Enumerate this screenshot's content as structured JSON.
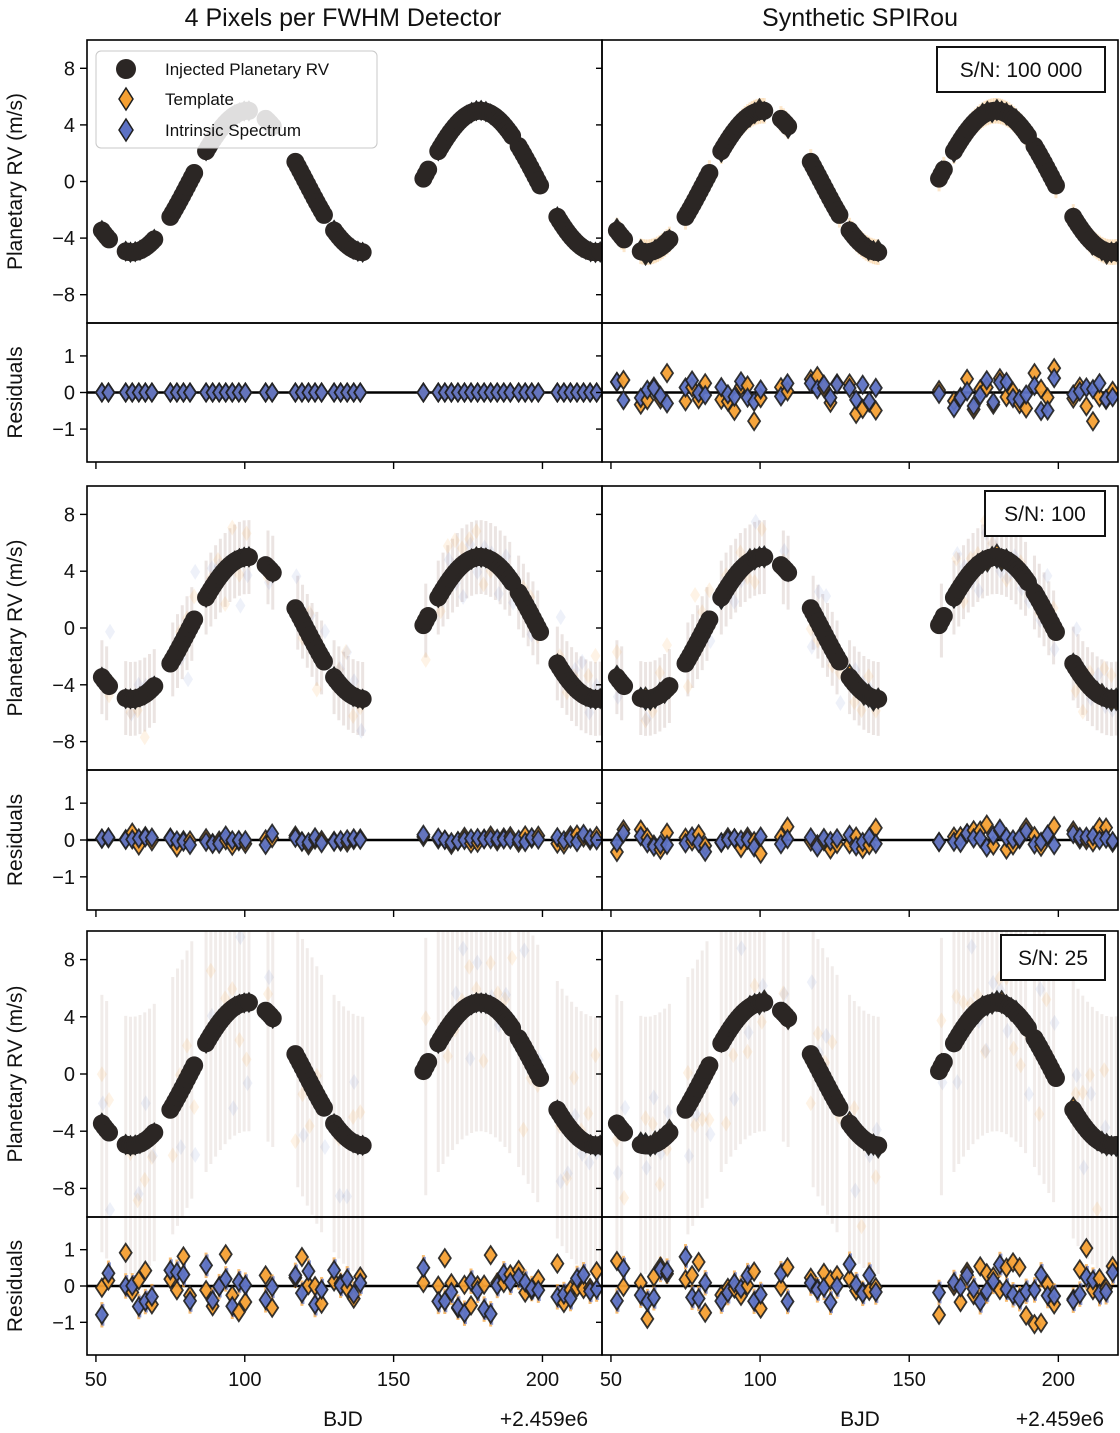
{
  "titles": {
    "left": "4 Pixels per FWHM Detector",
    "right": "Synthetic SPIRou"
  },
  "legend": {
    "injected": "Injected Planetary RV",
    "template": "Template",
    "intrinsic": "Intrinsic Spectrum"
  },
  "colors": {
    "injected": "#2b2624",
    "template": "#f5a033",
    "intrinsic": "#5d72c4",
    "edge": "#1f1f1f",
    "zero_line": "#000000",
    "scatter_mix": "#8f6b60"
  },
  "xaxis": {
    "label": "BJD",
    "offset": "+2.459e6",
    "ticks": [
      50,
      100,
      150,
      200
    ],
    "range": [
      47,
      220
    ]
  },
  "rv_axis": {
    "label": "Planetary RV (m/s)",
    "ticks": [
      8,
      4,
      0,
      -4,
      -8
    ],
    "range": [
      -10,
      10
    ]
  },
  "res_axis": {
    "label": "Residuals",
    "ticks": [
      1,
      0,
      -1
    ],
    "range": [
      -1.9,
      1.9
    ]
  },
  "rows": [
    {
      "sn": "S/N: 100 000",
      "scatter": 0.0
    },
    {
      "sn": "S/N: 100",
      "scatter": 1.0
    },
    {
      "sn": "S/N: 25",
      "scatter": 2.0
    }
  ],
  "chart_data": {
    "type": "scatter",
    "model": {
      "description_shape": "sinusoid",
      "period_days": 78,
      "amplitude": 5.0,
      "peak_bjd": 101
    },
    "observation_segments": [
      [
        52,
        55
      ],
      [
        60,
        70
      ],
      [
        75,
        83
      ],
      [
        87,
        102
      ],
      [
        107,
        110
      ],
      [
        117,
        127
      ],
      [
        130,
        140
      ],
      [
        160,
        162
      ],
      [
        165,
        190
      ],
      [
        192,
        200
      ],
      [
        205,
        220
      ]
    ],
    "series": [
      {
        "name": "Injected Planetary RV",
        "marker": "circle"
      },
      {
        "name": "Template",
        "marker": "diamond"
      },
      {
        "name": "Intrinsic Spectrum",
        "marker": "diamond"
      }
    ],
    "xlabel": "BJD",
    "ylabel_top": "Planetary RV (m/s)",
    "ylabel_bottom": "Residuals",
    "ylim_rv": [
      -10,
      10
    ],
    "ylim_residual": [
      -1.9,
      1.9
    ]
  }
}
